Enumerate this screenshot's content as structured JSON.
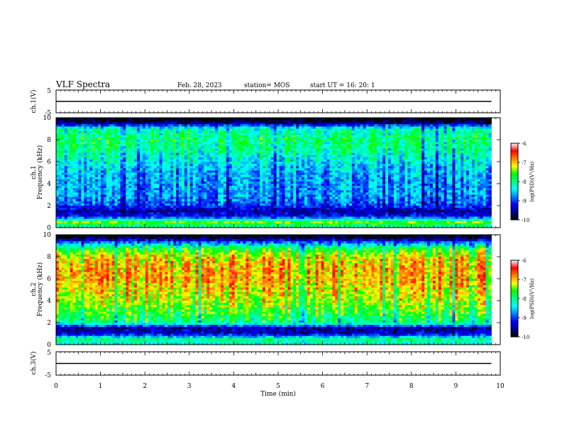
{
  "header": {
    "title": "VLF Spectra",
    "date": "Feb. 28, 2023",
    "station": "station= MOS",
    "start": "start UT =  16: 20: 1"
  },
  "colors": {
    "colorbar": [
      "#000000",
      "#00008b",
      "#0000ff",
      "#0080ff",
      "#00ffff",
      "#00ff80",
      "#00ff00",
      "#ffff00",
      "#ff8000",
      "#ff0000",
      "#ffffff"
    ]
  },
  "chart_data": [
    {
      "type": "line",
      "panel": "ch1-waveform",
      "ylabel": "ch.1(V)",
      "ylim": [
        -5,
        5
      ],
      "yticks": [
        "5",
        "-5"
      ],
      "xlim": [
        0,
        10
      ],
      "series": [
        {
          "x": [
            0,
            9.8
          ],
          "y": [
            0,
            0
          ]
        }
      ]
    },
    {
      "type": "heatmap",
      "panel": "ch1-spectrogram",
      "ylabel": [
        "ch.1",
        "Frequency (kHz)"
      ],
      "ylim": [
        0,
        10
      ],
      "yticks": [
        "0",
        "2",
        "4",
        "6",
        "8",
        "10"
      ],
      "xlim": [
        0,
        10
      ],
      "data_end_min": 9.8,
      "colorbar": {
        "label": "log(PSD)(V²/Hz)",
        "range": [
          -10,
          -6
        ],
        "ticks": [
          "-6",
          "-7",
          "-8",
          "-9",
          "-10"
        ]
      },
      "profile_khz": [
        0,
        0.5,
        1,
        1.5,
        2,
        3,
        4,
        5,
        6,
        7,
        8,
        9,
        9.3,
        9.6,
        10
      ],
      "profile_log_psd": [
        -8.2,
        -7.5,
        -9.2,
        -9.5,
        -9.0,
        -8.7,
        -8.7,
        -8.6,
        -8.4,
        -8.1,
        -7.9,
        -8.2,
        -9.0,
        -9.9,
        -10.0
      ]
    },
    {
      "type": "heatmap",
      "panel": "ch2-spectrogram",
      "ylabel": [
        "ch.2",
        "Frequency (kHz)"
      ],
      "ylim": [
        0,
        10
      ],
      "yticks": [
        "0",
        "2",
        "4",
        "6",
        "8",
        "10"
      ],
      "xlim": [
        0,
        10
      ],
      "data_end_min": 9.8,
      "colorbar": {
        "label": "log(PSD)(V²/Hz)",
        "range": [
          -10,
          -6
        ],
        "ticks": [
          "-6",
          "-7",
          "-8",
          "-9",
          "-10"
        ]
      },
      "profile_khz": [
        0,
        0.5,
        1,
        1.5,
        2,
        3,
        4,
        5,
        6,
        7,
        8,
        8.7,
        9.2,
        9.6,
        10
      ],
      "profile_log_psd": [
        -8.3,
        -8.0,
        -9.4,
        -9.5,
        -8.0,
        -7.6,
        -7.3,
        -7.1,
        -6.9,
        -6.9,
        -7.1,
        -7.7,
        -8.6,
        -9.6,
        -10.0
      ]
    },
    {
      "type": "line",
      "panel": "ch3-waveform",
      "ylabel": "ch.3(V)",
      "ylim": [
        -5,
        5
      ],
      "yticks": [
        "5",
        "-5"
      ],
      "xlim": [
        0,
        10
      ],
      "series": [
        {
          "x": [
            0,
            9.8
          ],
          "y": [
            0,
            0
          ]
        }
      ]
    }
  ],
  "xaxis": {
    "label": "Time (min)",
    "ticks": [
      "0",
      "1",
      "2",
      "3",
      "4",
      "5",
      "6",
      "7",
      "8",
      "9",
      "10"
    ]
  }
}
